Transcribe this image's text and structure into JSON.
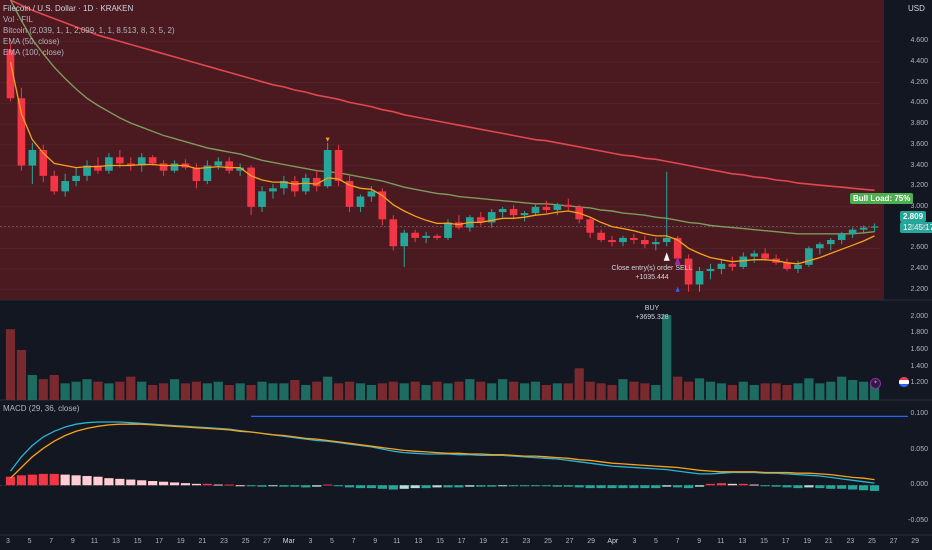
{
  "header": {
    "symbol": "Filecoin / U.S. Dollar · 1D · KRAKEN",
    "vol": "Vol · FIL",
    "indicator": "Bitcoin (2,039, 1, 1, 2,099, 1, 1, 8.513, 8, 3, 5, 2)",
    "ema50": "EMA (50, close)",
    "ema100": "EMA (100, close)",
    "macd": "MACD (29, 36, close)",
    "currency": "USD"
  },
  "price_tags": {
    "last": "2.809",
    "countdown": "12:45:17",
    "bull_load": "Bull Load: 75%"
  },
  "annotations": {
    "close_entry": "Close entry(s) order SELL",
    "close_pnl": "+1035.444",
    "buy": "BUY",
    "buy_amount": "+3695.328"
  },
  "colors": {
    "up": "#26a69a",
    "down": "#f23645",
    "ema50": "#7e9a5c",
    "ema100": "#e0474f",
    "ema_fast": "#f7a21b",
    "macd_line": "#2ab4d6",
    "signal_line": "#f7a21b",
    "panel_bg": "#4a1a20",
    "bull_tag": "#4caf50"
  },
  "chart_data": [
    {
      "type": "candlestick",
      "ylim": [
        2.1,
        5.0
      ],
      "y_ticks": [
        "4.600",
        "4.400",
        "4.200",
        "4.000",
        "3.800",
        "3.600",
        "3.400",
        "3.200",
        "3.000",
        "2.800",
        "2.600",
        "2.400",
        "2.200"
      ],
      "x_ticks": [
        "3",
        "5",
        "7",
        "9",
        "11",
        "13",
        "15",
        "17",
        "19",
        "21",
        "23",
        "25",
        "27",
        "Mar",
        "3",
        "5",
        "7",
        "9",
        "11",
        "13",
        "15",
        "17",
        "19",
        "21",
        "23",
        "25",
        "27",
        "29",
        "Apr",
        "3",
        "5",
        "7",
        "9",
        "11",
        "13",
        "15",
        "17",
        "19",
        "21",
        "23",
        "25",
        "27",
        "29"
      ],
      "ohlc": [
        [
          4.52,
          4.58,
          4.02,
          4.05
        ],
        [
          4.05,
          4.15,
          3.35,
          3.4
        ],
        [
          3.4,
          3.62,
          3.22,
          3.55
        ],
        [
          3.55,
          3.6,
          3.24,
          3.3
        ],
        [
          3.3,
          3.35,
          3.12,
          3.15
        ],
        [
          3.15,
          3.32,
          3.1,
          3.25
        ],
        [
          3.25,
          3.38,
          3.2,
          3.3
        ],
        [
          3.3,
          3.45,
          3.25,
          3.4
        ],
        [
          3.4,
          3.48,
          3.32,
          3.35
        ],
        [
          3.35,
          3.52,
          3.32,
          3.48
        ],
        [
          3.48,
          3.55,
          3.38,
          3.42
        ],
        [
          3.42,
          3.48,
          3.35,
          3.4
        ],
        [
          3.4,
          3.52,
          3.34,
          3.48
        ],
        [
          3.48,
          3.5,
          3.4,
          3.42
        ],
        [
          3.42,
          3.45,
          3.3,
          3.35
        ],
        [
          3.35,
          3.45,
          3.33,
          3.42
        ],
        [
          3.42,
          3.46,
          3.36,
          3.38
        ],
        [
          3.38,
          3.42,
          3.18,
          3.25
        ],
        [
          3.25,
          3.45,
          3.22,
          3.4
        ],
        [
          3.4,
          3.48,
          3.36,
          3.44
        ],
        [
          3.44,
          3.48,
          3.32,
          3.35
        ],
        [
          3.35,
          3.42,
          3.3,
          3.38
        ],
        [
          3.38,
          3.4,
          2.92,
          3.0
        ],
        [
          3.0,
          3.2,
          2.95,
          3.15
        ],
        [
          3.15,
          3.22,
          3.08,
          3.18
        ],
        [
          3.18,
          3.3,
          3.12,
          3.25
        ],
        [
          3.25,
          3.3,
          3.1,
          3.15
        ],
        [
          3.15,
          3.32,
          3.12,
          3.28
        ],
        [
          3.28,
          3.35,
          3.15,
          3.2
        ],
        [
          3.2,
          3.62,
          3.18,
          3.55
        ],
        [
          3.55,
          3.6,
          3.2,
          3.25
        ],
        [
          3.25,
          3.32,
          2.95,
          3.0
        ],
        [
          3.0,
          3.12,
          2.95,
          3.1
        ],
        [
          3.1,
          3.2,
          3.05,
          3.15
        ],
        [
          3.15,
          3.18,
          2.82,
          2.88
        ],
        [
          2.88,
          2.92,
          2.58,
          2.62
        ],
        [
          2.62,
          2.78,
          2.42,
          2.75
        ],
        [
          2.75,
          2.78,
          2.66,
          2.7
        ],
        [
          2.7,
          2.76,
          2.65,
          2.72
        ],
        [
          2.72,
          2.74,
          2.68,
          2.7
        ],
        [
          2.7,
          2.88,
          2.68,
          2.85
        ],
        [
          2.85,
          2.92,
          2.78,
          2.8
        ],
        [
          2.8,
          2.92,
          2.76,
          2.9
        ],
        [
          2.9,
          2.95,
          2.82,
          2.85
        ],
        [
          2.85,
          2.98,
          2.8,
          2.95
        ],
        [
          2.95,
          3.0,
          2.9,
          2.98
        ],
        [
          2.98,
          3.02,
          2.88,
          2.92
        ],
        [
          2.92,
          2.96,
          2.86,
          2.94
        ],
        [
          2.94,
          3.02,
          2.92,
          3.0
        ],
        [
          3.0,
          3.06,
          2.94,
          2.97
        ],
        [
          2.97,
          3.04,
          2.92,
          3.02
        ],
        [
          3.02,
          3.08,
          2.96,
          3.0
        ],
        [
          3.0,
          3.02,
          2.84,
          2.88
        ],
        [
          2.88,
          2.9,
          2.7,
          2.75
        ],
        [
          2.75,
          2.78,
          2.66,
          2.68
        ],
        [
          2.68,
          2.72,
          2.62,
          2.66
        ],
        [
          2.66,
          2.72,
          2.62,
          2.7
        ],
        [
          2.7,
          2.74,
          2.64,
          2.68
        ],
        [
          2.68,
          2.72,
          2.6,
          2.64
        ],
        [
          2.64,
          2.7,
          2.58,
          2.66
        ],
        [
          2.66,
          3.34,
          2.62,
          2.7
        ],
        [
          2.7,
          2.72,
          2.46,
          2.5
        ],
        [
          2.5,
          2.54,
          2.18,
          2.25
        ],
        [
          2.25,
          2.42,
          2.18,
          2.38
        ],
        [
          2.38,
          2.45,
          2.3,
          2.4
        ],
        [
          2.4,
          2.5,
          2.35,
          2.45
        ],
        [
          2.45,
          2.52,
          2.38,
          2.42
        ],
        [
          2.42,
          2.56,
          2.4,
          2.52
        ],
        [
          2.52,
          2.58,
          2.46,
          2.55
        ],
        [
          2.55,
          2.6,
          2.48,
          2.5
        ],
        [
          2.5,
          2.54,
          2.44,
          2.46
        ],
        [
          2.46,
          2.5,
          2.38,
          2.4
        ],
        [
          2.4,
          2.48,
          2.36,
          2.44
        ],
        [
          2.44,
          2.62,
          2.42,
          2.6
        ],
        [
          2.6,
          2.66,
          2.54,
          2.64
        ],
        [
          2.64,
          2.7,
          2.58,
          2.68
        ],
        [
          2.68,
          2.76,
          2.64,
          2.74
        ],
        [
          2.74,
          2.8,
          2.7,
          2.78
        ],
        [
          2.78,
          2.82,
          2.74,
          2.8
        ],
        [
          2.8,
          2.84,
          2.76,
          2.81
        ]
      ],
      "ema_fast": [
        4.4,
        3.9,
        3.65,
        3.52,
        3.42,
        3.4,
        3.38,
        3.39,
        3.39,
        3.4,
        3.4,
        3.4,
        3.41,
        3.41,
        3.4,
        3.4,
        3.4,
        3.37,
        3.38,
        3.39,
        3.38,
        3.38,
        3.3,
        3.26,
        3.24,
        3.24,
        3.22,
        3.23,
        3.22,
        3.28,
        3.27,
        3.21,
        3.18,
        3.17,
        3.11,
        3.02,
        2.96,
        2.91,
        2.87,
        2.84,
        2.84,
        2.83,
        2.85,
        2.85,
        2.87,
        2.89,
        2.89,
        2.9,
        2.92,
        2.93,
        2.95,
        2.96,
        2.94,
        2.9,
        2.85,
        2.81,
        2.79,
        2.77,
        2.74,
        2.72,
        2.72,
        2.68,
        2.6,
        2.55,
        2.51,
        2.49,
        2.47,
        2.48,
        2.49,
        2.49,
        2.48,
        2.46,
        2.45,
        2.48,
        2.51,
        2.55,
        2.59,
        2.63,
        2.67,
        2.72
      ],
      "ema50": [
        5.0,
        4.8,
        4.62,
        4.48,
        4.35,
        4.24,
        4.14,
        4.05,
        3.98,
        3.92,
        3.86,
        3.81,
        3.77,
        3.73,
        3.69,
        3.66,
        3.63,
        3.6,
        3.57,
        3.55,
        3.53,
        3.51,
        3.48,
        3.45,
        3.43,
        3.41,
        3.39,
        3.37,
        3.35,
        3.34,
        3.33,
        3.31,
        3.29,
        3.27,
        3.25,
        3.22,
        3.19,
        3.17,
        3.15,
        3.13,
        3.12,
        3.1,
        3.09,
        3.08,
        3.07,
        3.06,
        3.05,
        3.04,
        3.03,
        3.03,
        3.02,
        3.01,
        3.0,
        2.99,
        2.97,
        2.96,
        2.94,
        2.93,
        2.92,
        2.9,
        2.89,
        2.87,
        2.85,
        2.84,
        2.82,
        2.81,
        2.8,
        2.79,
        2.78,
        2.77,
        2.76,
        2.75,
        2.74,
        2.74,
        2.74,
        2.74,
        2.74,
        2.74,
        2.75,
        2.76
      ],
      "ema100": [
        5.0,
        4.95,
        4.9,
        4.86,
        4.82,
        4.78,
        4.74,
        4.7,
        4.66,
        4.63,
        4.6,
        4.57,
        4.54,
        4.51,
        4.48,
        4.45,
        4.42,
        4.39,
        4.36,
        4.33,
        4.3,
        4.27,
        4.24,
        4.21,
        4.18,
        4.16,
        4.13,
        4.11,
        4.08,
        4.06,
        4.04,
        4.01,
        3.99,
        3.97,
        3.94,
        3.92,
        3.89,
        3.87,
        3.85,
        3.83,
        3.81,
        3.79,
        3.77,
        3.75,
        3.73,
        3.71,
        3.69,
        3.67,
        3.65,
        3.64,
        3.62,
        3.6,
        3.58,
        3.56,
        3.54,
        3.52,
        3.5,
        3.49,
        3.47,
        3.46,
        3.44,
        3.42,
        3.4,
        3.38,
        3.36,
        3.34,
        3.32,
        3.31,
        3.29,
        3.28,
        3.26,
        3.25,
        3.23,
        3.22,
        3.21,
        3.2,
        3.19,
        3.18,
        3.17,
        3.16
      ]
    },
    {
      "type": "bar",
      "title": "Vol · FIL",
      "y_ticks": [
        "2.000",
        "1.800",
        "1.600",
        "1.400",
        "1.200"
      ],
      "ylim": [
        1.0,
        2.2
      ],
      "values": [
        1.85,
        1.6,
        1.3,
        1.25,
        1.3,
        1.2,
        1.22,
        1.25,
        1.22,
        1.2,
        1.22,
        1.28,
        1.22,
        1.18,
        1.2,
        1.25,
        1.2,
        1.22,
        1.2,
        1.22,
        1.18,
        1.2,
        1.18,
        1.22,
        1.2,
        1.2,
        1.24,
        1.18,
        1.22,
        1.28,
        1.2,
        1.22,
        1.2,
        1.18,
        1.2,
        1.22,
        1.2,
        1.22,
        1.18,
        1.22,
        1.2,
        1.22,
        1.25,
        1.22,
        1.2,
        1.25,
        1.22,
        1.2,
        1.22,
        1.18,
        1.2,
        1.2,
        1.38,
        1.22,
        1.2,
        1.18,
        1.25,
        1.22,
        1.2,
        1.18,
        2.02,
        1.28,
        1.22,
        1.26,
        1.22,
        1.2,
        1.18,
        1.22,
        1.18,
        1.2,
        1.2,
        1.18,
        1.2,
        1.26,
        1.2,
        1.22,
        1.28,
        1.24,
        1.22,
        1.2
      ]
    },
    {
      "type": "bar",
      "title": "MACD (29, 36, close)",
      "y_ticks": [
        "0.100",
        "0.050",
        "0.000",
        "-0.050"
      ],
      "ylim": [
        -0.07,
        0.12
      ],
      "histogram": [
        0.012,
        0.014,
        0.015,
        0.016,
        0.016,
        0.015,
        0.014,
        0.013,
        0.012,
        0.01,
        0.009,
        0.008,
        0.007,
        0.006,
        0.005,
        0.004,
        0.003,
        0.002,
        0.002,
        0.001,
        0.001,
        0.0,
        -0.001,
        -0.002,
        -0.001,
        -0.002,
        -0.002,
        -0.003,
        -0.002,
        0.001,
        -0.001,
        -0.003,
        -0.004,
        -0.004,
        -0.005,
        -0.006,
        -0.005,
        -0.004,
        -0.004,
        -0.003,
        -0.003,
        -0.003,
        -0.002,
        -0.002,
        -0.002,
        -0.001,
        -0.001,
        -0.001,
        -0.001,
        -0.001,
        -0.002,
        -0.002,
        -0.003,
        -0.004,
        -0.004,
        -0.004,
        -0.004,
        -0.004,
        -0.004,
        -0.004,
        -0.002,
        -0.003,
        -0.004,
        -0.002,
        0.002,
        0.003,
        0.002,
        0.002,
        0.001,
        -0.001,
        -0.002,
        -0.003,
        -0.004,
        -0.003,
        -0.004,
        -0.005,
        -0.005,
        -0.006,
        -0.007,
        -0.008
      ],
      "macd_line": [
        0.02,
        0.04,
        0.056,
        0.068,
        0.076,
        0.082,
        0.086,
        0.088,
        0.089,
        0.089,
        0.089,
        0.088,
        0.087,
        0.086,
        0.085,
        0.084,
        0.083,
        0.082,
        0.081,
        0.08,
        0.079,
        0.077,
        0.075,
        0.073,
        0.071,
        0.069,
        0.067,
        0.065,
        0.063,
        0.062,
        0.06,
        0.058,
        0.056,
        0.054,
        0.051,
        0.048,
        0.046,
        0.045,
        0.044,
        0.044,
        0.044,
        0.043,
        0.043,
        0.042,
        0.042,
        0.042,
        0.041,
        0.04,
        0.039,
        0.038,
        0.037,
        0.035,
        0.033,
        0.031,
        0.029,
        0.027,
        0.026,
        0.025,
        0.024,
        0.023,
        0.022,
        0.02,
        0.018,
        0.016,
        0.016,
        0.017,
        0.018,
        0.018,
        0.018,
        0.017,
        0.017,
        0.016,
        0.015,
        0.014,
        0.013,
        0.011,
        0.009,
        0.007,
        0.005,
        0.003
      ],
      "signal_line": [
        0.01,
        0.025,
        0.04,
        0.052,
        0.062,
        0.07,
        0.076,
        0.08,
        0.083,
        0.085,
        0.086,
        0.086,
        0.086,
        0.085,
        0.084,
        0.083,
        0.082,
        0.081,
        0.08,
        0.079,
        0.078,
        0.076,
        0.075,
        0.073,
        0.071,
        0.07,
        0.068,
        0.066,
        0.065,
        0.063,
        0.061,
        0.059,
        0.057,
        0.055,
        0.053,
        0.051,
        0.049,
        0.048,
        0.047,
        0.046,
        0.045,
        0.045,
        0.044,
        0.044,
        0.043,
        0.043,
        0.042,
        0.041,
        0.041,
        0.04,
        0.039,
        0.038,
        0.036,
        0.035,
        0.033,
        0.031,
        0.03,
        0.029,
        0.028,
        0.027,
        0.026,
        0.025,
        0.023,
        0.021,
        0.02,
        0.019,
        0.019,
        0.019,
        0.019,
        0.018,
        0.018,
        0.018,
        0.017,
        0.017,
        0.016,
        0.015,
        0.013,
        0.011,
        0.01,
        0.008
      ]
    }
  ]
}
